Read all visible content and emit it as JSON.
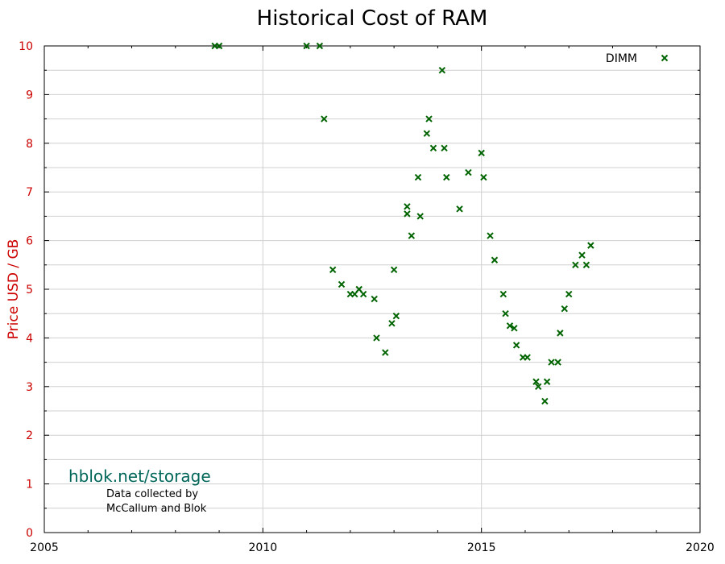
{
  "chart_data": {
    "type": "scatter",
    "title": "Historical Cost of RAM",
    "xlabel": "",
    "ylabel": "Price USD / GB",
    "xlim": [
      2005,
      2020
    ],
    "ylim": [
      0,
      10
    ],
    "x_ticks": [
      "2005",
      "2010",
      "2015",
      "2020"
    ],
    "y_ticks": [
      "0",
      "1",
      "2",
      "3",
      "4",
      "5",
      "6",
      "7",
      "8",
      "9",
      "10"
    ],
    "grid": true,
    "legend_position": "top-right",
    "series": [
      {
        "name": "DIMM",
        "color": "#006400",
        "marker": "x",
        "points": [
          [
            2008.9,
            10.0
          ],
          [
            2009.0,
            10.0
          ],
          [
            2011.0,
            10.0
          ],
          [
            2011.3,
            10.0
          ],
          [
            2011.4,
            8.5
          ],
          [
            2011.6,
            5.4
          ],
          [
            2011.8,
            5.1
          ],
          [
            2012.0,
            4.9
          ],
          [
            2012.1,
            4.9
          ],
          [
            2012.2,
            5.0
          ],
          [
            2012.3,
            4.9
          ],
          [
            2012.55,
            4.8
          ],
          [
            2012.6,
            4.0
          ],
          [
            2012.8,
            3.7
          ],
          [
            2012.95,
            4.3
          ],
          [
            2013.05,
            4.45
          ],
          [
            2013.0,
            5.4
          ],
          [
            2013.3,
            6.7
          ],
          [
            2013.3,
            6.55
          ],
          [
            2013.4,
            6.1
          ],
          [
            2013.55,
            7.3
          ],
          [
            2013.6,
            6.5
          ],
          [
            2013.75,
            8.2
          ],
          [
            2013.8,
            8.5
          ],
          [
            2013.9,
            7.9
          ],
          [
            2014.1,
            9.5
          ],
          [
            2014.15,
            7.9
          ],
          [
            2014.2,
            7.3
          ],
          [
            2014.5,
            6.65
          ],
          [
            2014.7,
            7.4
          ],
          [
            2015.0,
            7.8
          ],
          [
            2015.05,
            7.3
          ],
          [
            2015.2,
            6.1
          ],
          [
            2015.3,
            5.6
          ],
          [
            2015.5,
            4.9
          ],
          [
            2015.55,
            4.5
          ],
          [
            2015.65,
            4.25
          ],
          [
            2015.75,
            4.2
          ],
          [
            2015.8,
            3.85
          ],
          [
            2015.95,
            3.6
          ],
          [
            2016.05,
            3.6
          ],
          [
            2016.25,
            3.1
          ],
          [
            2016.3,
            3.0
          ],
          [
            2016.45,
            2.7
          ],
          [
            2016.5,
            3.1
          ],
          [
            2016.6,
            3.5
          ],
          [
            2016.75,
            3.5
          ],
          [
            2016.8,
            4.1
          ],
          [
            2016.9,
            4.6
          ],
          [
            2017.0,
            4.9
          ],
          [
            2017.15,
            5.5
          ],
          [
            2017.3,
            5.7
          ],
          [
            2017.4,
            5.5
          ],
          [
            2017.5,
            5.9
          ]
        ]
      }
    ]
  },
  "watermark": {
    "site": "hblok.net/storage",
    "credit_line1": "Data collected by",
    "credit_line2": "McCallum and Blok"
  },
  "colors": {
    "axis_text": "#cc0000",
    "x_tick_text": "#000000",
    "marker": "#006400",
    "watermark": "#00665a",
    "grid": "#d0d0d0"
  }
}
